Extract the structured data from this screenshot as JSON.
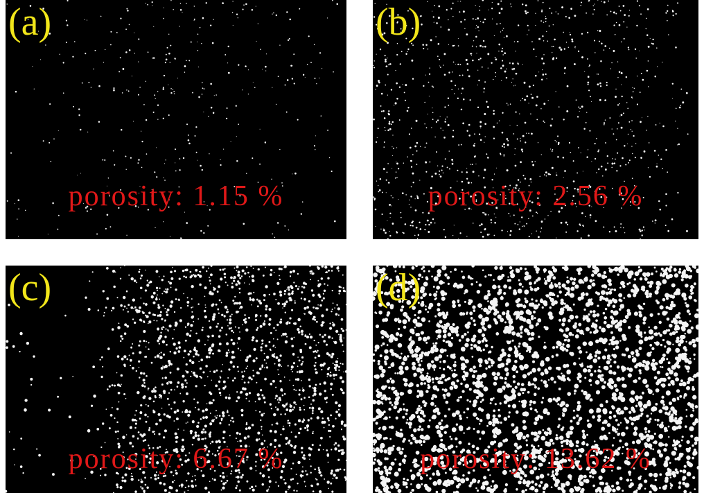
{
  "panels": [
    {
      "label": "(a)",
      "caption": "porosity: 1.15 %"
    },
    {
      "label": "(b)",
      "caption": "porosity: 2.56 %"
    },
    {
      "label": "(c)",
      "caption": "porosity: 6.67 %"
    },
    {
      "label": "(d)",
      "caption": "porosity: 13.62 %"
    }
  ]
}
